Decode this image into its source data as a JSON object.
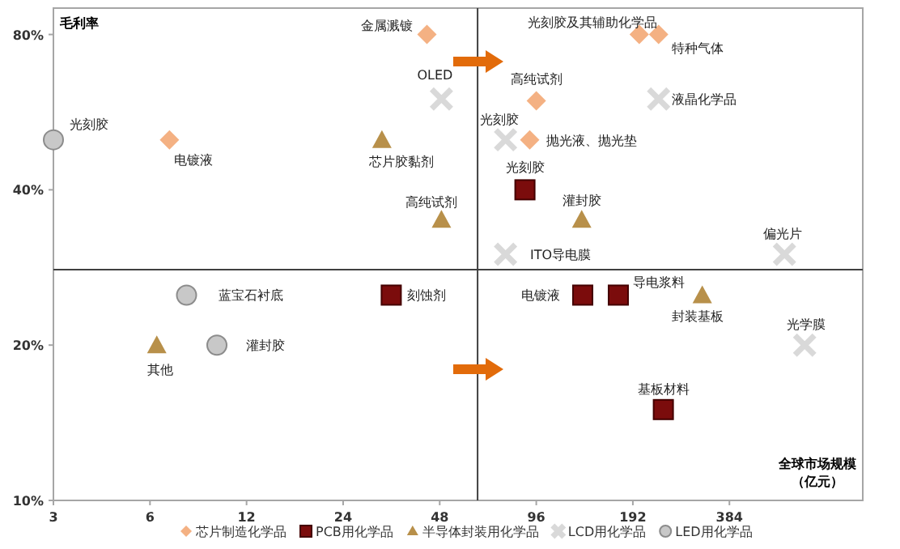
{
  "chart_data": {
    "type": "scatter",
    "ylabel": "毛利率",
    "xlabel": "全球市场规模（亿元）",
    "log": "xy",
    "xlim": [
      3,
      1000
    ],
    "ylim": [
      10,
      90
    ],
    "xticks": [
      3,
      6,
      12,
      24,
      48,
      96,
      192,
      384
    ],
    "yticks": [
      {
        "value": 10,
        "label": "10%"
      },
      {
        "value": 20,
        "label": "20%"
      },
      {
        "value": 40,
        "label": "40%"
      },
      {
        "value": 80,
        "label": "80%"
      }
    ],
    "legend": "bottom",
    "grid": false,
    "ref_lines": [
      {
        "axis": "x",
        "value": 63,
        "color": "#404040"
      },
      {
        "axis": "y",
        "value": 28,
        "color": "#404040"
      }
    ],
    "series": [
      {
        "name": "芯片制造化学品",
        "color": "#f4b183",
        "marker": "diamond",
        "x": [
          43.8,
          6.9,
          201,
          231,
          96,
          91.6
        ],
        "values": [
          80,
          50,
          80,
          80,
          59.5,
          50
        ]
      },
      {
        "name": "PCB用化学品",
        "color": "#7b0c0c",
        "marker": "square",
        "x": [
          88.5,
          33.9,
          134,
          173,
          239
        ],
        "values": [
          40,
          25,
          25,
          25,
          15
        ]
      },
      {
        "name": "半导体封装用化学品",
        "color": "#b8904a",
        "marker": "triangle",
        "x": [
          31.7,
          48.6,
          133,
          316,
          6.3
        ],
        "values": [
          50,
          35,
          35,
          25,
          20
        ]
      },
      {
        "name": "LCD用化学品",
        "color": "#d9d9d9",
        "marker": "cross",
        "x": [
          48.6,
          77,
          231,
          77,
          570,
          659
        ],
        "values": [
          60,
          50,
          60,
          30,
          30,
          20
        ]
      },
      {
        "name": "LED用化学品",
        "color": "#c8c8c8",
        "marker": "circle",
        "x": [
          3,
          7.8,
          9.7
        ],
        "values": [
          50,
          25,
          20
        ]
      }
    ],
    "annotations": [
      {
        "text": "金属溅镀",
        "x": 43.8,
        "y": 80
      },
      {
        "text": "电镀液",
        "x": 6.9,
        "y": 50
      },
      {
        "text": "光刻胶及其辅助化学品",
        "x": 201,
        "y": 80
      },
      {
        "text": "特种气体",
        "x": 231,
        "y": 80
      },
      {
        "text": "高纯试剂",
        "x": 96,
        "y": 59.5
      },
      {
        "text": "抛光液、抛光垫",
        "x": 91.6,
        "y": 50
      },
      {
        "text": "光刻胶",
        "x": 88.5,
        "y": 40
      },
      {
        "text": "刻蚀剂",
        "x": 33.9,
        "y": 25
      },
      {
        "text": "电镀液",
        "x": 134,
        "y": 25
      },
      {
        "text": "导电浆料",
        "x": 173,
        "y": 25
      },
      {
        "text": "基板材料",
        "x": 239,
        "y": 15
      },
      {
        "text": "芯片胶黏剂",
        "x": 31.7,
        "y": 50
      },
      {
        "text": "高纯试剂",
        "x": 48.6,
        "y": 35
      },
      {
        "text": "灌封胶",
        "x": 133,
        "y": 35
      },
      {
        "text": "封装基板",
        "x": 316,
        "y": 25
      },
      {
        "text": "其他",
        "x": 6.3,
        "y": 20
      },
      {
        "text": "OLED",
        "x": 48.6,
        "y": 60
      },
      {
        "text": "光刻胶",
        "x": 77,
        "y": 50
      },
      {
        "text": "液晶化学品",
        "x": 231,
        "y": 60
      },
      {
        "text": "ITO导电膜",
        "x": 77,
        "y": 30
      },
      {
        "text": "偏光片",
        "x": 570,
        "y": 30
      },
      {
        "text": "光学膜",
        "x": 659,
        "y": 20
      },
      {
        "text": "光刻胶",
        "x": 3,
        "y": 50
      },
      {
        "text": "蓝宝石衬底",
        "x": 7.8,
        "y": 25
      },
      {
        "text": "灌封胶",
        "x": 9.7,
        "y": 20
      }
    ]
  }
}
